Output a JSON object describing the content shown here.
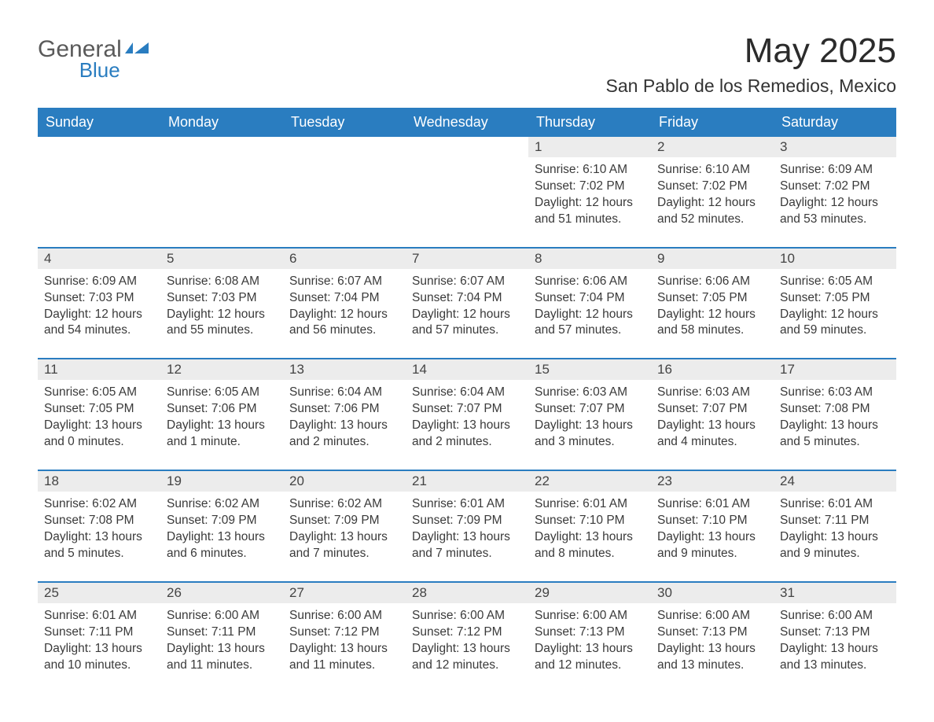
{
  "brand": {
    "line1": "General",
    "line2": "Blue"
  },
  "title": "May 2025",
  "location": "San Pablo de los Remedios, Mexico",
  "colors": {
    "accent": "#2a7dc0",
    "header_bg": "#2a7dc0",
    "header_text": "#ffffff",
    "day_header_bg": "#ececec",
    "row_border": "#2a7dc0",
    "text": "#3a3a3a",
    "background": "#ffffff"
  },
  "typography": {
    "title_fontsize_pt": 33,
    "location_fontsize_pt": 17,
    "weekday_fontsize_pt": 14,
    "daynum_fontsize_pt": 13,
    "body_fontsize_pt": 12,
    "font_family": "Arial"
  },
  "calendar": {
    "type": "table",
    "columns": [
      "Sunday",
      "Monday",
      "Tuesday",
      "Wednesday",
      "Thursday",
      "Friday",
      "Saturday"
    ],
    "weeks": [
      [
        null,
        null,
        null,
        null,
        {
          "day": "1",
          "sunrise": "6:10 AM",
          "sunset": "7:02 PM",
          "daylight": "12 hours and 51 minutes."
        },
        {
          "day": "2",
          "sunrise": "6:10 AM",
          "sunset": "7:02 PM",
          "daylight": "12 hours and 52 minutes."
        },
        {
          "day": "3",
          "sunrise": "6:09 AM",
          "sunset": "7:02 PM",
          "daylight": "12 hours and 53 minutes."
        }
      ],
      [
        {
          "day": "4",
          "sunrise": "6:09 AM",
          "sunset": "7:03 PM",
          "daylight": "12 hours and 54 minutes."
        },
        {
          "day": "5",
          "sunrise": "6:08 AM",
          "sunset": "7:03 PM",
          "daylight": "12 hours and 55 minutes."
        },
        {
          "day": "6",
          "sunrise": "6:07 AM",
          "sunset": "7:04 PM",
          "daylight": "12 hours and 56 minutes."
        },
        {
          "day": "7",
          "sunrise": "6:07 AM",
          "sunset": "7:04 PM",
          "daylight": "12 hours and 57 minutes."
        },
        {
          "day": "8",
          "sunrise": "6:06 AM",
          "sunset": "7:04 PM",
          "daylight": "12 hours and 57 minutes."
        },
        {
          "day": "9",
          "sunrise": "6:06 AM",
          "sunset": "7:05 PM",
          "daylight": "12 hours and 58 minutes."
        },
        {
          "day": "10",
          "sunrise": "6:05 AM",
          "sunset": "7:05 PM",
          "daylight": "12 hours and 59 minutes."
        }
      ],
      [
        {
          "day": "11",
          "sunrise": "6:05 AM",
          "sunset": "7:05 PM",
          "daylight": "13 hours and 0 minutes."
        },
        {
          "day": "12",
          "sunrise": "6:05 AM",
          "sunset": "7:06 PM",
          "daylight": "13 hours and 1 minute."
        },
        {
          "day": "13",
          "sunrise": "6:04 AM",
          "sunset": "7:06 PM",
          "daylight": "13 hours and 2 minutes."
        },
        {
          "day": "14",
          "sunrise": "6:04 AM",
          "sunset": "7:07 PM",
          "daylight": "13 hours and 2 minutes."
        },
        {
          "day": "15",
          "sunrise": "6:03 AM",
          "sunset": "7:07 PM",
          "daylight": "13 hours and 3 minutes."
        },
        {
          "day": "16",
          "sunrise": "6:03 AM",
          "sunset": "7:07 PM",
          "daylight": "13 hours and 4 minutes."
        },
        {
          "day": "17",
          "sunrise": "6:03 AM",
          "sunset": "7:08 PM",
          "daylight": "13 hours and 5 minutes."
        }
      ],
      [
        {
          "day": "18",
          "sunrise": "6:02 AM",
          "sunset": "7:08 PM",
          "daylight": "13 hours and 5 minutes."
        },
        {
          "day": "19",
          "sunrise": "6:02 AM",
          "sunset": "7:09 PM",
          "daylight": "13 hours and 6 minutes."
        },
        {
          "day": "20",
          "sunrise": "6:02 AM",
          "sunset": "7:09 PM",
          "daylight": "13 hours and 7 minutes."
        },
        {
          "day": "21",
          "sunrise": "6:01 AM",
          "sunset": "7:09 PM",
          "daylight": "13 hours and 7 minutes."
        },
        {
          "day": "22",
          "sunrise": "6:01 AM",
          "sunset": "7:10 PM",
          "daylight": "13 hours and 8 minutes."
        },
        {
          "day": "23",
          "sunrise": "6:01 AM",
          "sunset": "7:10 PM",
          "daylight": "13 hours and 9 minutes."
        },
        {
          "day": "24",
          "sunrise": "6:01 AM",
          "sunset": "7:11 PM",
          "daylight": "13 hours and 9 minutes."
        }
      ],
      [
        {
          "day": "25",
          "sunrise": "6:01 AM",
          "sunset": "7:11 PM",
          "daylight": "13 hours and 10 minutes."
        },
        {
          "day": "26",
          "sunrise": "6:00 AM",
          "sunset": "7:11 PM",
          "daylight": "13 hours and 11 minutes."
        },
        {
          "day": "27",
          "sunrise": "6:00 AM",
          "sunset": "7:12 PM",
          "daylight": "13 hours and 11 minutes."
        },
        {
          "day": "28",
          "sunrise": "6:00 AM",
          "sunset": "7:12 PM",
          "daylight": "13 hours and 12 minutes."
        },
        {
          "day": "29",
          "sunrise": "6:00 AM",
          "sunset": "7:13 PM",
          "daylight": "13 hours and 12 minutes."
        },
        {
          "day": "30",
          "sunrise": "6:00 AM",
          "sunset": "7:13 PM",
          "daylight": "13 hours and 13 minutes."
        },
        {
          "day": "31",
          "sunrise": "6:00 AM",
          "sunset": "7:13 PM",
          "daylight": "13 hours and 13 minutes."
        }
      ]
    ],
    "labels": {
      "sunrise": "Sunrise:",
      "sunset": "Sunset:",
      "daylight": "Daylight:"
    }
  }
}
